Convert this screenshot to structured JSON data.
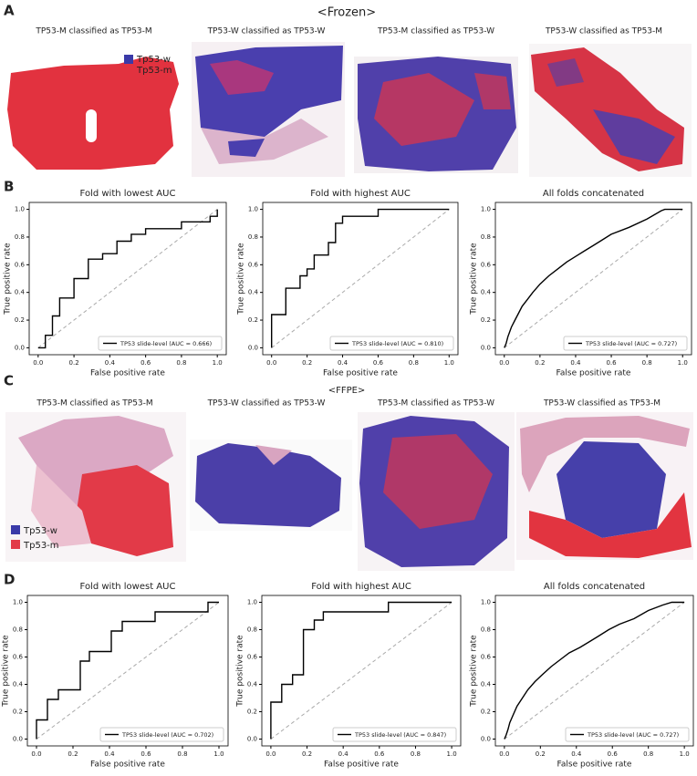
{
  "panel_labels": [
    "A",
    "B",
    "C",
    "D"
  ],
  "frozen": {
    "title": "<Frozen>",
    "captions": [
      "TP53-M classified as TP53-M",
      "TP53-W classified as TP53-W",
      "TP53-M classified as TP53-W",
      "TP53-W classified as TP53-M"
    ],
    "legend": [
      "Tp53-w",
      "Tp53-m"
    ]
  },
  "ffpe": {
    "title": "<FFPE>",
    "captions": [
      "TP53-M classified as TP53-M",
      "TP53-W classified as TP53-W",
      "TP53-M classified as TP53-W",
      "TP53-W classified as TP53-M"
    ],
    "legend": [
      "Tp53-w",
      "Tp53-m"
    ]
  },
  "chart_data": [
    {
      "type": "line",
      "title": "Fold with lowest AUC",
      "xlabel": "False positive rate",
      "ylabel": "True positive rate",
      "xlim": [
        -0.05,
        1.05
      ],
      "ylim": [
        -0.05,
        1.05
      ],
      "xticks": [
        {
          "value": 0,
          "label": "0.0"
        },
        0.2,
        0.4,
        0.6,
        0.8,
        {
          "value": 1,
          "label": "1.0"
        }
      ],
      "yticks": [
        {
          "value": 0,
          "label": "0.0"
        },
        0.2,
        0.4,
        0.6,
        0.8,
        {
          "value": 1,
          "label": "1.0"
        }
      ],
      "series": [
        {
          "name": "TP53 slide-level (AUC = 0.666)",
          "color": "#000000",
          "x": [
            0,
            0.04,
            0.04,
            0.08,
            0.08,
            0.12,
            0.12,
            0.2,
            0.2,
            0.28,
            0.28,
            0.36,
            0.36,
            0.44,
            0.44,
            0.52,
            0.52,
            0.6,
            0.6,
            0.8,
            0.8,
            0.96,
            0.96,
            1,
            1
          ],
          "values": [
            0,
            0,
            0.09,
            0.09,
            0.23,
            0.23,
            0.36,
            0.36,
            0.5,
            0.5,
            0.64,
            0.64,
            0.68,
            0.68,
            0.77,
            0.77,
            0.82,
            0.82,
            0.86,
            0.86,
            0.91,
            0.91,
            0.95,
            0.95,
            1
          ]
        },
        {
          "color": "#aaaaaa",
          "dashed": true,
          "x": [
            0,
            1
          ],
          "values": [
            0,
            1
          ]
        }
      ]
    },
    {
      "type": "line",
      "title": "Fold with highest AUC",
      "xlabel": "False positive rate",
      "ylabel": "True positive rate",
      "xlim": [
        -0.05,
        1.05
      ],
      "ylim": [
        -0.05,
        1.05
      ],
      "xticks": [
        {
          "value": 0,
          "label": "0.0"
        },
        0.2,
        0.4,
        0.6,
        0.8,
        {
          "value": 1,
          "label": "1.0"
        }
      ],
      "yticks": [
        {
          "value": 0,
          "label": "0.0"
        },
        0.2,
        0.4,
        0.6,
        0.8,
        {
          "value": 1,
          "label": "1.0"
        }
      ],
      "series": [
        {
          "name": "TP53 slide-level (AUC = 0.810)",
          "color": "#000000",
          "x": [
            0,
            0,
            0.08,
            0.08,
            0.16,
            0.16,
            0.2,
            0.2,
            0.24,
            0.24,
            0.32,
            0.32,
            0.36,
            0.36,
            0.4,
            0.4,
            0.6,
            0.6,
            1
          ],
          "values": [
            0,
            0.24,
            0.24,
            0.43,
            0.43,
            0.52,
            0.52,
            0.57,
            0.57,
            0.67,
            0.67,
            0.76,
            0.76,
            0.9,
            0.9,
            0.95,
            0.95,
            1,
            1
          ]
        },
        {
          "color": "#aaaaaa",
          "dashed": true,
          "x": [
            0,
            1
          ],
          "values": [
            0,
            1
          ]
        }
      ]
    },
    {
      "type": "line",
      "title": "All folds concatenated",
      "xlabel": "False positive rate",
      "ylabel": "True positive rate",
      "xlim": [
        -0.05,
        1.05
      ],
      "ylim": [
        -0.05,
        1.05
      ],
      "xticks": [
        {
          "value": 0,
          "label": "0.0"
        },
        0.2,
        0.4,
        0.6,
        0.8,
        {
          "value": 1,
          "label": "1.0"
        }
      ],
      "yticks": [
        {
          "value": 0,
          "label": "0.0"
        },
        0.2,
        0.4,
        0.6,
        0.8,
        {
          "value": 1,
          "label": "1.0"
        }
      ],
      "series": [
        {
          "name": "TP53 slide-level (AUC = 0.727)",
          "color": "#000000",
          "x": [
            0,
            0.01,
            0.02,
            0.04,
            0.06,
            0.08,
            0.1,
            0.13,
            0.16,
            0.2,
            0.25,
            0.3,
            0.35,
            0.4,
            0.45,
            0.5,
            0.55,
            0.6,
            0.7,
            0.8,
            0.88,
            0.9,
            1
          ],
          "values": [
            0,
            0.03,
            0.08,
            0.15,
            0.2,
            0.25,
            0.3,
            0.35,
            0.4,
            0.46,
            0.52,
            0.57,
            0.62,
            0.66,
            0.7,
            0.74,
            0.78,
            0.82,
            0.87,
            0.93,
            0.99,
            1,
            1
          ]
        },
        {
          "color": "#aaaaaa",
          "dashed": true,
          "x": [
            0,
            1
          ],
          "values": [
            0,
            1
          ]
        }
      ]
    },
    {
      "type": "line",
      "title": "Fold with lowest AUC",
      "xlabel": "False positive rate",
      "ylabel": "True positive rate",
      "xlim": [
        -0.05,
        1.05
      ],
      "ylim": [
        -0.05,
        1.05
      ],
      "xticks": [
        {
          "value": 0,
          "label": "0.0"
        },
        0.2,
        0.4,
        0.6,
        0.8,
        {
          "value": 1,
          "label": "1.0"
        }
      ],
      "yticks": [
        {
          "value": 0,
          "label": "0.0"
        },
        0.2,
        0.4,
        0.6,
        0.8,
        {
          "value": 1,
          "label": "1.0"
        }
      ],
      "series": [
        {
          "name": "TP53 slide-level (AUC = 0.702)",
          "color": "#000000",
          "x": [
            0,
            0,
            0.06,
            0.06,
            0.12,
            0.12,
            0.24,
            0.24,
            0.29,
            0.29,
            0.41,
            0.41,
            0.47,
            0.47,
            0.65,
            0.65,
            0.94,
            0.94,
            1
          ],
          "values": [
            0,
            0.14,
            0.14,
            0.29,
            0.29,
            0.36,
            0.36,
            0.57,
            0.57,
            0.64,
            0.64,
            0.79,
            0.79,
            0.86,
            0.86,
            0.93,
            0.93,
            1,
            1
          ]
        },
        {
          "color": "#aaaaaa",
          "dashed": true,
          "x": [
            0,
            1
          ],
          "values": [
            0,
            1
          ]
        }
      ]
    },
    {
      "type": "line",
      "title": "Fold with highest AUC",
      "xlabel": "False positive rate",
      "ylabel": "True positive rate",
      "xlim": [
        -0.05,
        1.05
      ],
      "ylim": [
        -0.05,
        1.05
      ],
      "xticks": [
        {
          "value": 0,
          "label": "0.0"
        },
        0.2,
        0.4,
        0.6,
        0.8,
        {
          "value": 1,
          "label": "1.0"
        }
      ],
      "yticks": [
        {
          "value": 0,
          "label": "0.0"
        },
        0.2,
        0.4,
        0.6,
        0.8,
        {
          "value": 1,
          "label": "1.0"
        }
      ],
      "series": [
        {
          "name": "TP53 slide-level (AUC = 0.847)",
          "color": "#000000",
          "x": [
            0,
            0,
            0.06,
            0.06,
            0.12,
            0.12,
            0.18,
            0.18,
            0.24,
            0.24,
            0.29,
            0.29,
            0.65,
            0.65,
            1
          ],
          "values": [
            0,
            0.27,
            0.27,
            0.4,
            0.4,
            0.47,
            0.47,
            0.8,
            0.8,
            0.87,
            0.87,
            0.93,
            0.93,
            1,
            1
          ]
        },
        {
          "color": "#aaaaaa",
          "dashed": true,
          "x": [
            0,
            1
          ],
          "values": [
            0,
            1
          ]
        }
      ]
    },
    {
      "type": "line",
      "title": "All folds concatenated",
      "xlabel": "False positive rate",
      "ylabel": "True positive rate",
      "xlim": [
        -0.05,
        1.05
      ],
      "ylim": [
        -0.05,
        1.05
      ],
      "xticks": [
        {
          "value": 0,
          "label": "0.0"
        },
        0.2,
        0.4,
        0.6,
        0.8,
        {
          "value": 1,
          "label": "1.0"
        }
      ],
      "yticks": [
        {
          "value": 0,
          "label": "0.0"
        },
        0.2,
        0.4,
        0.6,
        0.8,
        {
          "value": 1,
          "label": "1.0"
        }
      ],
      "series": [
        {
          "name": "TP53 slide-level (AUC = 0.727)",
          "color": "#000000",
          "x": [
            0,
            0.01,
            0.02,
            0.03,
            0.05,
            0.07,
            0.1,
            0.13,
            0.17,
            0.21,
            0.26,
            0.31,
            0.36,
            0.42,
            0.47,
            0.52,
            0.58,
            0.64,
            0.72,
            0.8,
            0.88,
            0.93,
            1
          ],
          "values": [
            0,
            0.03,
            0.07,
            0.12,
            0.18,
            0.24,
            0.3,
            0.36,
            0.42,
            0.47,
            0.53,
            0.58,
            0.63,
            0.67,
            0.71,
            0.75,
            0.8,
            0.84,
            0.88,
            0.94,
            0.98,
            1,
            1
          ]
        },
        {
          "color": "#aaaaaa",
          "dashed": true,
          "x": [
            0,
            1
          ],
          "values": [
            0,
            1
          ]
        }
      ]
    }
  ]
}
